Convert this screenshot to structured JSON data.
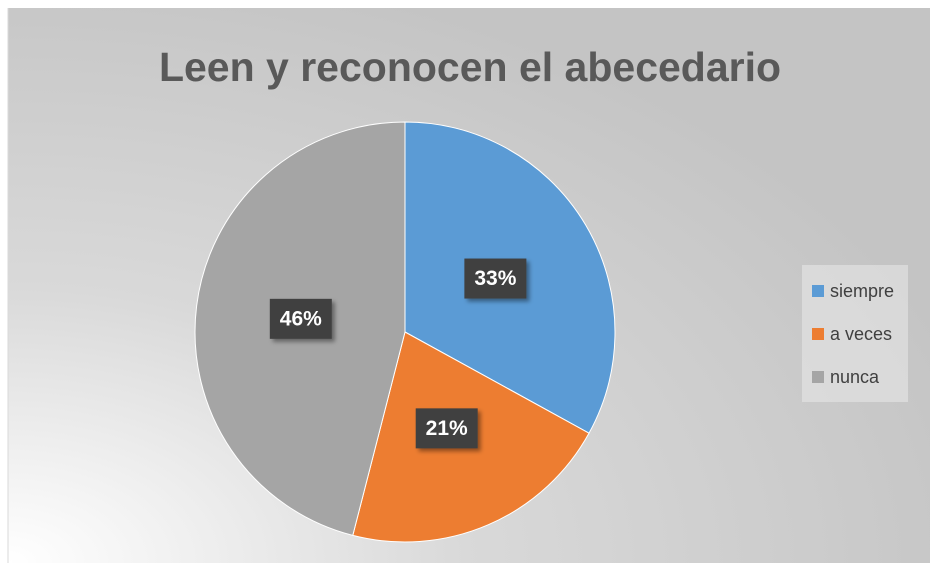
{
  "chart_data": {
    "type": "pie",
    "title": "Leen y reconocen el abecedario",
    "categories": [
      "siempre",
      "a veces",
      "nunca"
    ],
    "values": [
      33,
      21,
      46
    ],
    "value_labels": [
      "33%",
      "21%",
      "46%"
    ],
    "colors": [
      "#5b9bd5",
      "#ed7d31",
      "#a5a5a5"
    ],
    "legend": "right"
  }
}
